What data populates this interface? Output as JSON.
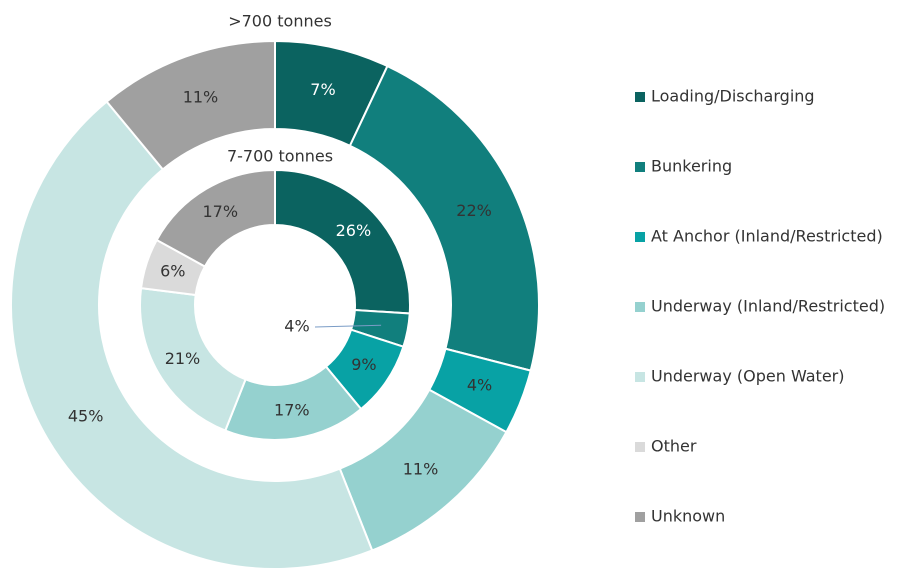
{
  "chart_data": {
    "type": "donut",
    "categories": [
      "Loading/Discharging",
      "Bunkering",
      "At Anchor (Inland/Restricted)",
      "Underway (Inland/Restricted)",
      "Underway (Open Water)",
      "Other",
      "Unknown"
    ],
    "colors": [
      "#0b6360",
      "#117f7d",
      "#08a2a5",
      "#95d1cf",
      "#c7e5e3",
      "#dadada",
      "#a0a0a0"
    ],
    "series": [
      {
        "name": ">700 tonnes",
        "values": [
          7,
          22,
          4,
          11,
          45,
          null,
          11
        ],
        "value_labels": [
          "7%",
          "22%",
          "4%",
          "11%",
          "45%",
          null,
          "11%"
        ]
      },
      {
        "name": "7-700 tonnes",
        "values": [
          26,
          4,
          9,
          17,
          21,
          6,
          17
        ],
        "value_labels": [
          "26%",
          "4%",
          "9%",
          "17%",
          "21%",
          "6%",
          "17%"
        ]
      }
    ],
    "legend": "right"
  }
}
